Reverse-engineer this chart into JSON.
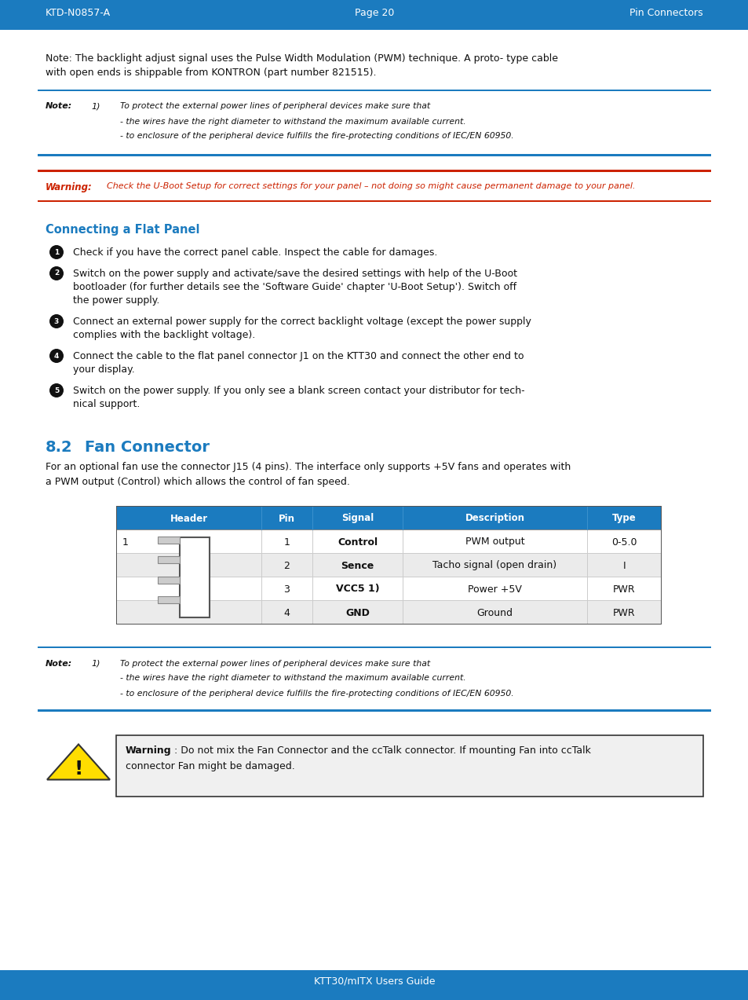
{
  "header_bg": "#1b7bbf",
  "header_text_color": "#ffffff",
  "header_left": "KTD-N0857-A",
  "header_center": "Page 20",
  "header_right": "Pin Connectors",
  "footer_text": "KTT30/mITX Users Guide",
  "body_bg": "#ffffff",
  "note_border_color": "#1b7bbf",
  "warning_border_color": "#cc2200",
  "blue_heading_color": "#1b7bbf",
  "body_text_color": "#111111",
  "warning_label_color": "#cc2200",
  "warning_text_color": "#cc2200",
  "table_header_bg": "#1b7bbf",
  "table_header_text": "#ffffff",
  "intro_text_line1": "Note: The backlight adjust signal uses the Pulse Width Modulation (PWM) technique. A proto- type cable",
  "intro_text_line2": "with open ends is shippable from KONTRON (part number 821515).",
  "note1_label": "Note:",
  "note1_num": "1)",
  "note1_lines": [
    "To protect the external power lines of peripheral devices make sure that",
    "- the wires have the right diameter to withstand the maximum available current.",
    "- to enclosure of the peripheral device fulfills the fire-protecting conditions of IEC/EN 60950."
  ],
  "warning1_label": "Warning:",
  "warning1_text": "Check the U-Boot Setup for correct settings for your panel – not doing so might cause permanent damage to your panel.",
  "connecting_heading": "Connecting a Flat Panel",
  "steps": [
    "Check if you have the correct panel cable. Inspect the cable for damages.",
    "Switch on the power supply and activate/save the desired settings with help of the U-Boot\nbootloader (for further details see the 'Software Guide' chapter 'U-Boot Setup'). Switch off\nthe power supply.",
    "Connect an external power supply for the correct backlight voltage (except the power supply\ncomplies with the backlight voltage).",
    "Connect the cable to the flat panel connector J1 on the KTT30 and connect the other end to\nyour display.",
    "Switch on the power supply. If you only see a blank screen contact your distributor for tech-\nnical support."
  ],
  "section_82_num": "8.2",
  "section_82_title": "Fan Connector",
  "section_intro_line1": "For an optional fan use the connector J15 (4 pins). The interface only supports +5V fans and operates with",
  "section_intro_line2": "a PWM output (Control) which allows the control of fan speed.",
  "table_headers": [
    "Header",
    "Pin",
    "Signal",
    "Description",
    "Type"
  ],
  "table_col_widths": [
    185,
    65,
    115,
    235,
    95
  ],
  "table_rows": [
    [
      "1",
      "Control",
      "PWM output",
      "0-5.0"
    ],
    [
      "2",
      "Sence",
      "Tacho signal (open drain)",
      "I"
    ],
    [
      "3",
      "VCC5 1)",
      "Power +5V",
      "PWR"
    ],
    [
      "4",
      "GND",
      "Ground",
      "PWR"
    ]
  ],
  "note2_label": "Note:",
  "note2_num": "1)",
  "note2_lines": [
    "To protect the external power lines of peripheral devices make sure that",
    "- the wires have the right diameter to withstand the maximum available current.",
    "- to enclosure of the peripheral device fulfills the fire-protecting conditions of IEC/EN 60950."
  ],
  "warning2_bold": "Warning",
  "warning2_colon": ":",
  "warning2_line1": " Do not mix the Fan Connector and the ccTalk connector. If mounting Fan into ccTalk",
  "warning2_line2": "connector Fan might be damaged."
}
